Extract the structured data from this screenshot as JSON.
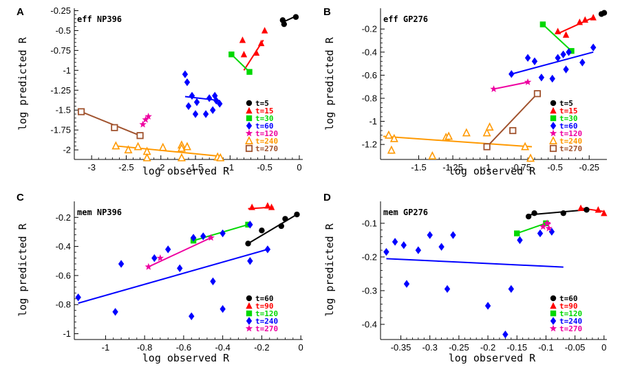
{
  "chart_data": [
    {
      "type": "scatter",
      "panel_label": "A",
      "title": "eff NP396",
      "xlabel": "log observed R",
      "ylabel": "log predicted R",
      "xlim": [
        -3.25,
        0.05
      ],
      "ylim": [
        -2.12,
        -0.22
      ],
      "xticks": [
        -3,
        -2.5,
        -2,
        -1.5,
        -1,
        -0.5,
        0
      ],
      "xtick_labels": [
        "-3",
        "-2.5",
        "-2",
        "-1.5",
        "-1",
        "-0.5",
        "0"
      ],
      "yticks": [
        -2,
        -1.75,
        -1.5,
        -1.25,
        -1,
        -0.75,
        -0.5,
        -0.25
      ],
      "ytick_labels": [
        "-2",
        "-1.75",
        "-1.5",
        "-1.25",
        "-1",
        "-0.75",
        "-0.5",
        "-0.25"
      ],
      "series": [
        {
          "name": "t=5",
          "color": "#000000",
          "marker": "circle",
          "x": [
            -0.24,
            -0.22,
            -0.05
          ],
          "y": [
            -0.37,
            -0.42,
            -0.33
          ],
          "fit": [
            [
              -0.25,
              -0.4
            ],
            [
              -0.05,
              -0.32
            ]
          ]
        },
        {
          "name": "t=15",
          "color": "#ff0000",
          "marker": "triangle",
          "x": [
            -0.82,
            -0.8,
            -0.62,
            -0.55,
            -0.5
          ],
          "y": [
            -0.62,
            -0.8,
            -0.78,
            -0.66,
            -0.5
          ],
          "fit": [
            [
              -0.8,
              -1.0
            ],
            [
              -0.52,
              -0.62
            ]
          ]
        },
        {
          "name": "t=30",
          "color": "#00d800",
          "marker": "square",
          "x": [
            -0.98,
            -0.72
          ],
          "y": [
            -0.8,
            -1.02
          ],
          "fit": [
            [
              -0.98,
              -0.8
            ],
            [
              -0.72,
              -1.02
            ]
          ]
        },
        {
          "name": "t=60",
          "color": "#0000ff",
          "marker": "diamond",
          "x": [
            -1.65,
            -1.62,
            -1.55,
            -1.6,
            -1.48,
            -1.5,
            -1.3,
            -1.25,
            -1.2,
            -1.15,
            -1.35,
            -1.22
          ],
          "y": [
            -1.05,
            -1.15,
            -1.32,
            -1.45,
            -1.4,
            -1.55,
            -1.35,
            -1.5,
            -1.38,
            -1.42,
            -1.55,
            -1.32
          ],
          "fit": [
            [
              -1.65,
              -1.33
            ],
            [
              -1.15,
              -1.38
            ]
          ]
        },
        {
          "name": "t=120",
          "color": "#ee00a0",
          "marker": "star",
          "x": [
            -2.26,
            -2.18,
            -2.22
          ],
          "y": [
            -1.68,
            -1.58,
            -1.62
          ],
          "fit": null
        },
        {
          "name": "t=240",
          "color": "#ff9900",
          "marker": "triangle-open",
          "x": [
            -2.65,
            -2.47,
            -2.33,
            -2.2,
            -2.2,
            -1.97,
            -1.7,
            -1.7,
            -1.62,
            -1.7,
            -1.18,
            -1.14
          ],
          "y": [
            -1.95,
            -2.0,
            -1.96,
            -2.02,
            -2.1,
            -1.97,
            -1.94,
            -1.98,
            -1.96,
            -2.1,
            -2.09,
            -2.1
          ],
          "fit": [
            [
              -2.65,
              -1.95
            ],
            [
              -1.14,
              -2.08
            ]
          ]
        },
        {
          "name": "t=270",
          "color": "#a0522d",
          "marker": "square-open",
          "x": [
            -3.15,
            -2.67,
            -2.3
          ],
          "y": [
            -1.52,
            -1.72,
            -1.82
          ],
          "fit": [
            [
              -3.15,
              -1.52
            ],
            [
              -2.3,
              -1.82
            ]
          ]
        }
      ]
    },
    {
      "type": "scatter",
      "panel_label": "B",
      "title": "eff GP276",
      "xlabel": "log observed R",
      "ylabel": "log predicted R",
      "xlim": [
        -1.78,
        -0.12
      ],
      "ylim": [
        -1.33,
        -0.02
      ],
      "xticks": [
        -1.5,
        -1.25,
        -1,
        -0.75,
        -0.5,
        -0.25
      ],
      "xtick_labels": [
        "-1.5",
        "-1.25",
        "-1",
        "-0.75",
        "-0.5",
        "-0.25"
      ],
      "yticks": [
        -1.2,
        -1,
        -0.8,
        -0.6,
        -0.4,
        -0.2
      ],
      "ytick_labels": [
        "-1.2",
        "-1",
        "-0.8",
        "-0.6",
        "-0.4",
        "-0.2"
      ],
      "series": [
        {
          "name": "t=5",
          "color": "#000000",
          "marker": "circle",
          "x": [
            -0.16,
            -0.14
          ],
          "y": [
            -0.07,
            -0.06
          ],
          "fit": [
            [
              -0.16,
              -0.07
            ],
            [
              -0.14,
              -0.06
            ]
          ]
        },
        {
          "name": "t=15",
          "color": "#ff0000",
          "marker": "triangle",
          "x": [
            -0.48,
            -0.42,
            -0.32,
            -0.28,
            -0.22
          ],
          "y": [
            -0.22,
            -0.25,
            -0.14,
            -0.12,
            -0.1
          ],
          "fit": [
            [
              -0.48,
              -0.24
            ],
            [
              -0.22,
              -0.1
            ]
          ]
        },
        {
          "name": "t=30",
          "color": "#00d800",
          "marker": "square",
          "x": [
            -0.59,
            -0.38
          ],
          "y": [
            -0.16,
            -0.39
          ],
          "fit": [
            [
              -0.59,
              -0.16
            ],
            [
              -0.38,
              -0.39
            ]
          ]
        },
        {
          "name": "t=60",
          "color": "#0000ff",
          "marker": "diamond",
          "x": [
            -0.82,
            -0.7,
            -0.65,
            -0.6,
            -0.52,
            -0.48,
            -0.44,
            -0.42,
            -0.4,
            -0.3,
            -0.22
          ],
          "y": [
            -0.59,
            -0.45,
            -0.48,
            -0.62,
            -0.63,
            -0.45,
            -0.42,
            -0.55,
            -0.4,
            -0.49,
            -0.36
          ],
          "fit": [
            [
              -0.82,
              -0.59
            ],
            [
              -0.22,
              -0.4
            ]
          ]
        },
        {
          "name": "t=120",
          "color": "#ee00a0",
          "marker": "star",
          "x": [
            -0.95,
            -0.7
          ],
          "y": [
            -0.72,
            -0.66
          ],
          "fit": [
            [
              -0.95,
              -0.72
            ],
            [
              -0.7,
              -0.66
            ]
          ]
        },
        {
          "name": "t=240",
          "color": "#ff9900",
          "marker": "triangle-open",
          "x": [
            -1.72,
            -1.7,
            -1.4,
            -1.3,
            -1.28,
            -1.15,
            -1.0,
            -0.98,
            -0.72,
            -0.68,
            -1.68
          ],
          "y": [
            -1.12,
            -1.25,
            -1.3,
            -1.14,
            -1.13,
            -1.1,
            -1.1,
            -1.05,
            -1.22,
            -1.32,
            -1.15
          ],
          "fit": [
            [
              -1.76,
              -1.13
            ],
            [
              -0.67,
              -1.22
            ]
          ]
        },
        {
          "name": "t=270",
          "color": "#a0522d",
          "marker": "square-open",
          "x": [
            -1.0,
            -0.81,
            -0.63
          ],
          "y": [
            -1.22,
            -1.08,
            -0.76
          ],
          "fit": [
            [
              -1.0,
              -1.22
            ],
            [
              -0.63,
              -0.76
            ]
          ]
        }
      ]
    },
    {
      "type": "scatter",
      "panel_label": "C",
      "title": "mem NP396",
      "xlabel": "log observed R",
      "ylabel": "log predicted R",
      "xlim": [
        -1.16,
        0.01
      ],
      "ylim": [
        -1.04,
        -0.09
      ],
      "xticks": [
        -1,
        -0.8,
        -0.6,
        -0.4,
        -0.2,
        0
      ],
      "xtick_labels": [
        "-1",
        "-0.8",
        "-0.6",
        "-0.4",
        "-0.2",
        "0"
      ],
      "yticks": [
        -1,
        -0.8,
        -0.6,
        -0.4,
        -0.2
      ],
      "ytick_labels": [
        "-1",
        "-0.8",
        "-0.6",
        "-0.4",
        "-0.2"
      ],
      "series": [
        {
          "name": "t=60",
          "color": "#000000",
          "marker": "circle",
          "x": [
            -0.27,
            -0.2,
            -0.1,
            -0.08,
            -0.02
          ],
          "y": [
            -0.38,
            -0.29,
            -0.26,
            -0.21,
            -0.18
          ],
          "fit": [
            [
              -0.27,
              -0.38
            ],
            [
              -0.02,
              -0.18
            ]
          ]
        },
        {
          "name": "t=90",
          "color": "#ff0000",
          "marker": "triangle",
          "x": [
            -0.25,
            -0.17,
            -0.15
          ],
          "y": [
            -0.13,
            -0.12,
            -0.13
          ],
          "fit": [
            [
              -0.27,
              -0.14
            ],
            [
              -0.14,
              -0.13
            ]
          ]
        },
        {
          "name": "t=120",
          "color": "#00d800",
          "marker": "square",
          "x": [
            -0.55,
            -0.27
          ],
          "y": [
            -0.36,
            -0.25
          ],
          "fit": [
            [
              -0.55,
              -0.36
            ],
            [
              -0.27,
              -0.25
            ]
          ]
        },
        {
          "name": "t=240",
          "color": "#0000ff",
          "marker": "diamond",
          "x": [
            -1.14,
            -0.95,
            -0.92,
            -0.75,
            -0.68,
            -0.62,
            -0.56,
            -0.55,
            -0.5,
            -0.45,
            -0.4,
            -0.4,
            -0.26,
            -0.26,
            -0.17
          ],
          "y": [
            -0.75,
            -0.85,
            -0.52,
            -0.48,
            -0.42,
            -0.55,
            -0.88,
            -0.34,
            -0.33,
            -0.64,
            -0.31,
            -0.83,
            -0.25,
            -0.5,
            -0.42
          ],
          "fit": [
            [
              -1.14,
              -0.79
            ],
            [
              -0.17,
              -0.42
            ]
          ]
        },
        {
          "name": "t=270",
          "color": "#ee00a0",
          "marker": "star",
          "x": [
            -0.78,
            -0.72,
            -0.46
          ],
          "y": [
            -0.54,
            -0.48,
            -0.34
          ],
          "fit": [
            [
              -0.78,
              -0.54
            ],
            [
              -0.46,
              -0.34
            ]
          ]
        }
      ]
    },
    {
      "type": "scatter",
      "panel_label": "D",
      "title": "mem GP276",
      "xlabel": "log observed R",
      "ylabel": "log predicted R",
      "xlim": [
        -0.385,
        0.005
      ],
      "ylim": [
        -0.445,
        -0.035
      ],
      "xticks": [
        -0.35,
        -0.3,
        -0.25,
        -0.2,
        -0.15,
        -0.1,
        -0.05,
        0
      ],
      "xtick_labels": [
        "-0.35",
        "-0.3",
        "-0.25",
        "-0.2",
        "-0.15",
        "-0.1",
        "-0.05",
        "0"
      ],
      "yticks": [
        -0.4,
        -0.3,
        -0.2,
        -0.1
      ],
      "ytick_labels": [
        "-0.4",
        "-0.3",
        "-0.2",
        "-0.1"
      ],
      "series": [
        {
          "name": "t=60",
          "color": "#000000",
          "marker": "circle",
          "x": [
            -0.13,
            -0.12,
            -0.07,
            -0.03
          ],
          "y": [
            -0.08,
            -0.07,
            -0.07,
            -0.06
          ],
          "fit": [
            [
              -0.13,
              -0.075
            ],
            [
              -0.03,
              -0.06
            ]
          ]
        },
        {
          "name": "t=90",
          "color": "#ff0000",
          "marker": "triangle",
          "x": [
            -0.04,
            -0.01,
            0.0
          ],
          "y": [
            -0.055,
            -0.06,
            -0.07
          ],
          "fit": [
            [
              -0.04,
              -0.055
            ],
            [
              0.0,
              -0.065
            ]
          ]
        },
        {
          "name": "t=120",
          "color": "#00d800",
          "marker": "square",
          "x": [
            -0.15,
            -0.1
          ],
          "y": [
            -0.13,
            -0.1
          ],
          "fit": [
            [
              -0.15,
              -0.13
            ],
            [
              -0.1,
              -0.1
            ]
          ]
        },
        {
          "name": "t=240",
          "color": "#0000ff",
          "marker": "diamond",
          "x": [
            -0.375,
            -0.36,
            -0.345,
            -0.34,
            -0.32,
            -0.3,
            -0.28,
            -0.27,
            -0.26,
            -0.2,
            -0.17,
            -0.16,
            -0.145,
            -0.11,
            -0.09
          ],
          "y": [
            -0.185,
            -0.155,
            -0.165,
            -0.28,
            -0.18,
            -0.135,
            -0.17,
            -0.295,
            -0.135,
            -0.345,
            -0.43,
            -0.295,
            -0.15,
            -0.13,
            -0.125
          ],
          "fit": [
            [
              -0.375,
              -0.205
            ],
            [
              -0.07,
              -0.23
            ]
          ]
        },
        {
          "name": "t=270",
          "color": "#ee00a0",
          "marker": "star",
          "x": [
            -0.105,
            -0.098,
            -0.095
          ],
          "y": [
            -0.11,
            -0.1,
            -0.115
          ],
          "fit": [
            [
              -0.108,
              -0.11
            ],
            [
              -0.092,
              -0.1
            ]
          ]
        }
      ]
    }
  ]
}
